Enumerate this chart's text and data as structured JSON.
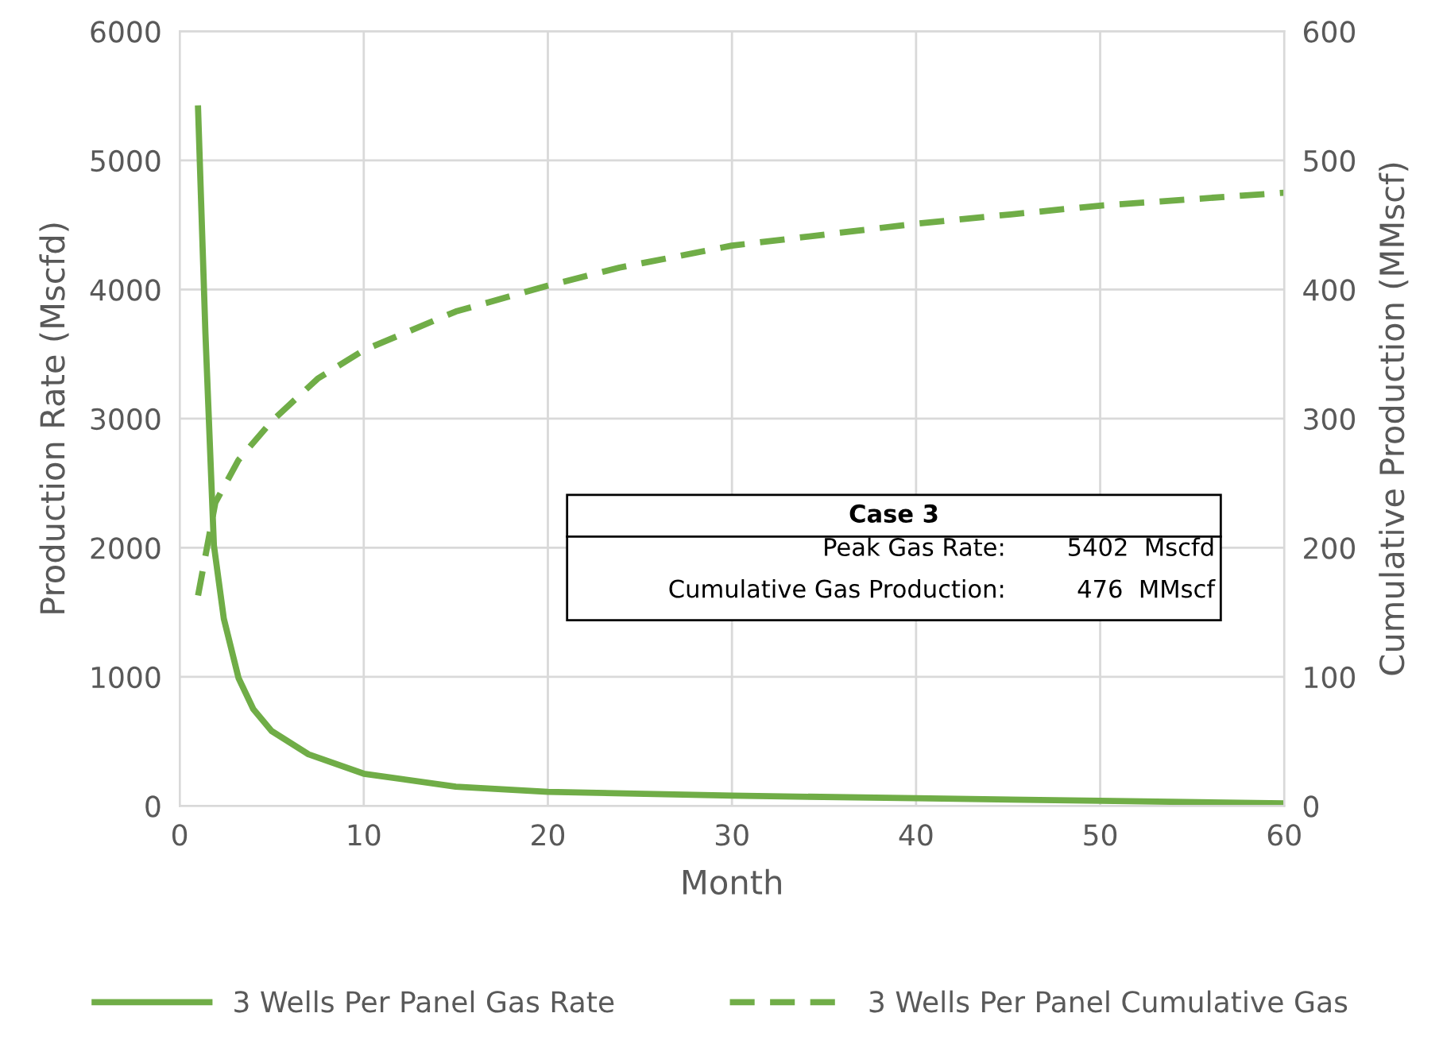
{
  "chart_data": {
    "type": "line",
    "xlabel": "Month",
    "ylabel": "Production Rate (Mscfd)",
    "y2label": "Cumulative Production (MMscf)",
    "xlim": [
      0,
      60
    ],
    "xticks": [
      0,
      10,
      20,
      30,
      40,
      50,
      60
    ],
    "ylim": [
      0,
      6000
    ],
    "yticks": [
      0,
      1000,
      2000,
      3000,
      4000,
      5000,
      6000
    ],
    "y2lim": [
      0,
      600
    ],
    "y2ticks": [
      0,
      100,
      200,
      300,
      400,
      500,
      600
    ],
    "grid": true,
    "legend": "bottom",
    "marker": "none",
    "series": [
      {
        "name": "3 Wells Per Panel Gas Rate",
        "color": "#70ad47",
        "line_style": "solid",
        "x": [
          1,
          1.4,
          1.86,
          2.4,
          3.2,
          4,
          5,
          7,
          10,
          15,
          20,
          30,
          40,
          50,
          60
        ],
        "values": [
          5402,
          3660,
          2020,
          1450,
          990,
          750,
          580,
          400,
          250,
          150,
          110,
          80,
          60,
          40,
          20
        ]
      },
      {
        "name": "3 Wells Per Panel Cumulative Gas",
        "color": "#70ad47",
        "line_style": "dashed",
        "axis": "y2",
        "x": [
          1,
          1.94,
          3.2,
          5,
          7.5,
          10,
          15,
          20,
          23.9,
          30,
          40,
          50,
          60
        ],
        "values": [
          163,
          235,
          268,
          298,
          331,
          353,
          383,
          403,
          417,
          434,
          451,
          465,
          475
        ]
      }
    ],
    "annotations": [
      "Case 3",
      "Peak Gas Rate:",
      "5402  Mscfd",
      "Cumulative Gas Production:",
      "476  MMscf"
    ]
  }
}
